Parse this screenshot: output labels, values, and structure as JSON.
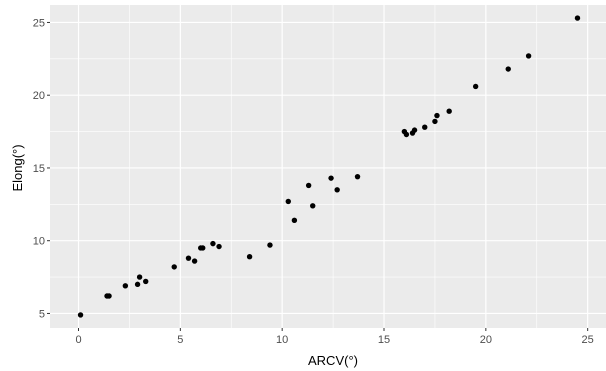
{
  "chart_data": {
    "type": "scatter",
    "xlabel": "ARCV(°)",
    "ylabel": "Elong(°)",
    "xlim": [
      -1.4,
      25.9
    ],
    "ylim": [
      4.0,
      26.2
    ],
    "x_ticks": [
      0,
      5,
      10,
      15,
      20,
      25
    ],
    "y_ticks": [
      5,
      10,
      15,
      20,
      25
    ],
    "grid": true,
    "legend": "none",
    "panel_background": "#ebebeb",
    "grid_color": "#ffffff",
    "point_color": "#000000",
    "points": [
      {
        "x": 0.1,
        "y": 4.9
      },
      {
        "x": 1.4,
        "y": 6.2
      },
      {
        "x": 1.5,
        "y": 6.2
      },
      {
        "x": 2.3,
        "y": 6.9
      },
      {
        "x": 2.9,
        "y": 7.0
      },
      {
        "x": 3.0,
        "y": 7.5
      },
      {
        "x": 3.3,
        "y": 7.2
      },
      {
        "x": 4.7,
        "y": 8.2
      },
      {
        "x": 5.4,
        "y": 8.8
      },
      {
        "x": 5.7,
        "y": 8.6
      },
      {
        "x": 6.0,
        "y": 9.5
      },
      {
        "x": 6.1,
        "y": 9.5
      },
      {
        "x": 6.6,
        "y": 9.8
      },
      {
        "x": 6.9,
        "y": 9.6
      },
      {
        "x": 8.4,
        "y": 8.9
      },
      {
        "x": 9.4,
        "y": 9.7
      },
      {
        "x": 10.3,
        "y": 12.7
      },
      {
        "x": 10.6,
        "y": 11.4
      },
      {
        "x": 11.3,
        "y": 13.8
      },
      {
        "x": 11.5,
        "y": 12.4
      },
      {
        "x": 12.4,
        "y": 14.3
      },
      {
        "x": 12.7,
        "y": 13.5
      },
      {
        "x": 13.7,
        "y": 14.4
      },
      {
        "x": 16.0,
        "y": 17.5
      },
      {
        "x": 16.1,
        "y": 17.3
      },
      {
        "x": 16.4,
        "y": 17.4
      },
      {
        "x": 16.5,
        "y": 17.6
      },
      {
        "x": 17.0,
        "y": 17.8
      },
      {
        "x": 17.5,
        "y": 18.2
      },
      {
        "x": 17.6,
        "y": 18.6
      },
      {
        "x": 18.2,
        "y": 18.9
      },
      {
        "x": 19.5,
        "y": 20.6
      },
      {
        "x": 21.1,
        "y": 21.8
      },
      {
        "x": 22.1,
        "y": 22.7
      },
      {
        "x": 24.5,
        "y": 25.3
      }
    ]
  }
}
